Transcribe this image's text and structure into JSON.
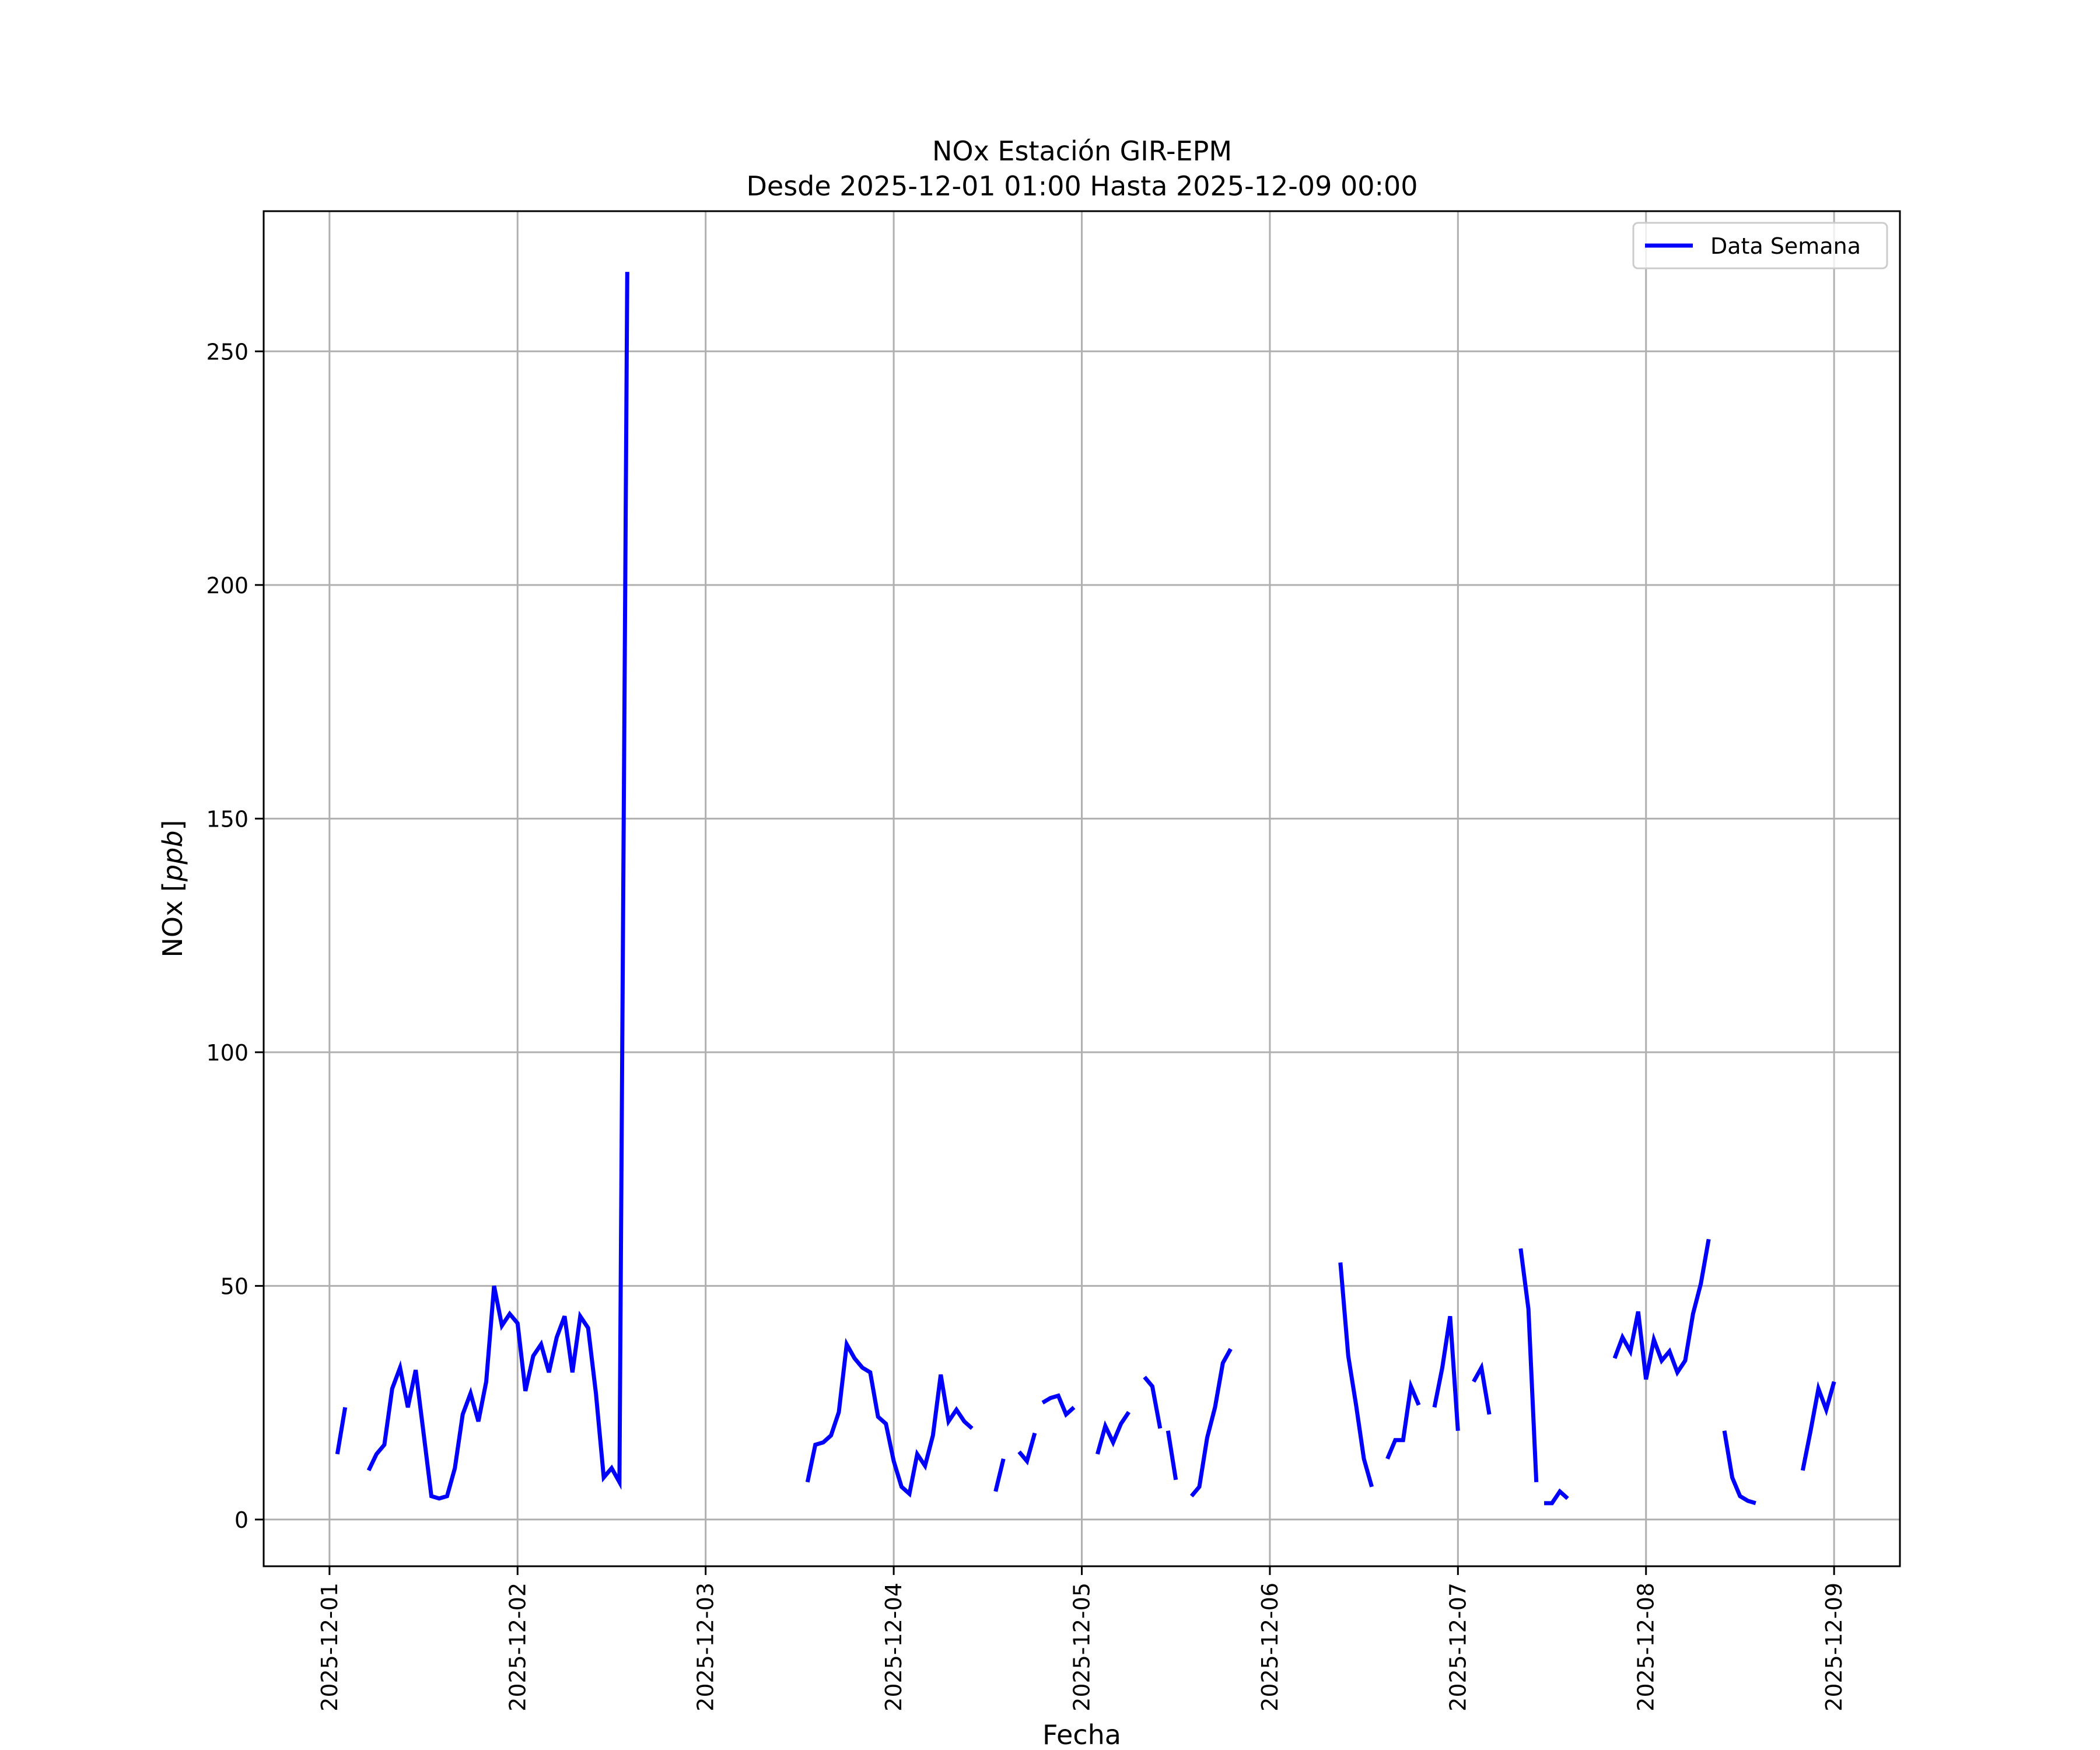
{
  "chart_data": {
    "type": "line",
    "title": "NOx Estación GIR-EPM",
    "subtitle": "Desde 2025-12-01 01:00 Hasta 2025-12-09 00:00",
    "xlabel": "Fecha",
    "ylabel": "NOx [ppb]",
    "ylim": [
      -10,
      280
    ],
    "xlim": [
      "2025-11-30T15:36",
      "2025-12-09T08:24"
    ],
    "yticks": [
      0,
      50,
      100,
      150,
      200,
      250
    ],
    "xticks": [
      "2025-12-01",
      "2025-12-02",
      "2025-12-03",
      "2025-12-04",
      "2025-12-05",
      "2025-12-06",
      "2025-12-07",
      "2025-12-08",
      "2025-12-09"
    ],
    "grid": true,
    "legend_position": "top-right",
    "colors": {
      "series": "#0000ff",
      "grid": "#b0b0b0",
      "axes": "#000000"
    },
    "series": [
      {
        "name": "Data Semana",
        "segments": [
          [
            [
              "2025-12-01T01:00",
              14
            ],
            [
              "2025-12-01T02:00",
              24
            ]
          ],
          [
            [
              "2025-12-01T05:00",
              10.5
            ],
            [
              "2025-12-01T06:00",
              14
            ],
            [
              "2025-12-01T07:00",
              16
            ],
            [
              "2025-12-01T08:00",
              28
            ],
            [
              "2025-12-01T09:00",
              32.5
            ],
            [
              "2025-12-01T10:00",
              24
            ],
            [
              "2025-12-01T11:00",
              32
            ],
            [
              "2025-12-01T12:00",
              18.5
            ],
            [
              "2025-12-01T13:00",
              5
            ],
            [
              "2025-12-01T14:00",
              4.5
            ],
            [
              "2025-12-01T15:00",
              5
            ],
            [
              "2025-12-01T16:00",
              11
            ],
            [
              "2025-12-01T17:00",
              22.5
            ],
            [
              "2025-12-01T18:00",
              27
            ],
            [
              "2025-12-01T19:00",
              21
            ],
            [
              "2025-12-01T20:00",
              29.5
            ],
            [
              "2025-12-01T21:00",
              50
            ],
            [
              "2025-12-01T22:00",
              41.5
            ],
            [
              "2025-12-01T23:00",
              44
            ],
            [
              "2025-12-02T00:00",
              42
            ],
            [
              "2025-12-02T01:00",
              27.5
            ],
            [
              "2025-12-02T02:00",
              35
            ],
            [
              "2025-12-02T03:00",
              37.5
            ],
            [
              "2025-12-02T04:00",
              31.5
            ],
            [
              "2025-12-02T05:00",
              39
            ],
            [
              "2025-12-02T06:00",
              43.5
            ],
            [
              "2025-12-02T07:00",
              31.5
            ],
            [
              "2025-12-02T08:00",
              43.5
            ],
            [
              "2025-12-02T09:00",
              41
            ],
            [
              "2025-12-02T10:00",
              27
            ],
            [
              "2025-12-02T11:00",
              9
            ],
            [
              "2025-12-02T12:00",
              11
            ],
            [
              "2025-12-02T13:00",
              8
            ],
            [
              "2025-12-02T14:00",
              267
            ]
          ],
          [
            [
              "2025-12-03T13:00",
              8
            ],
            [
              "2025-12-03T14:00",
              16
            ],
            [
              "2025-12-03T15:00",
              16.5
            ],
            [
              "2025-12-03T16:00",
              18
            ],
            [
              "2025-12-03T17:00",
              23
            ],
            [
              "2025-12-03T18:00",
              37.5
            ],
            [
              "2025-12-03T19:00",
              34.5
            ],
            [
              "2025-12-03T20:00",
              32.5
            ],
            [
              "2025-12-03T21:00",
              31.5
            ],
            [
              "2025-12-03T22:00",
              22
            ],
            [
              "2025-12-03T23:00",
              20.5
            ],
            [
              "2025-12-04T00:00",
              12.5
            ],
            [
              "2025-12-04T01:00",
              7
            ],
            [
              "2025-12-04T02:00",
              5.5
            ],
            [
              "2025-12-04T03:00",
              14
            ],
            [
              "2025-12-04T04:00",
              11.5
            ],
            [
              "2025-12-04T05:00",
              18
            ],
            [
              "2025-12-04T06:00",
              31
            ],
            [
              "2025-12-04T07:00",
              21
            ],
            [
              "2025-12-04T08:00",
              23.5
            ],
            [
              "2025-12-04T09:00",
              21
            ],
            [
              "2025-12-04T10:00",
              19.5
            ]
          ],
          [
            [
              "2025-12-04T13:00",
              6
            ],
            [
              "2025-12-04T14:00",
              13
            ]
          ],
          [
            [
              "2025-12-04T16:00",
              14.5
            ],
            [
              "2025-12-04T17:00",
              12.5
            ],
            [
              "2025-12-04T18:00",
              18.5
            ]
          ],
          [
            [
              "2025-12-04T19:00",
              25
            ],
            [
              "2025-12-04T20:00",
              26
            ],
            [
              "2025-12-04T21:00",
              26.5
            ],
            [
              "2025-12-04T22:00",
              22.5
            ],
            [
              "2025-12-04T23:00",
              24
            ]
          ],
          [
            [
              "2025-12-05T02:00",
              14
            ],
            [
              "2025-12-05T03:00",
              20
            ],
            [
              "2025-12-05T04:00",
              16.5
            ],
            [
              "2025-12-05T05:00",
              20.5
            ],
            [
              "2025-12-05T06:00",
              23
            ]
          ],
          [
            [
              "2025-12-05T08:00",
              30.5
            ],
            [
              "2025-12-05T09:00",
              28.5
            ],
            [
              "2025-12-05T10:00",
              19.5
            ]
          ],
          [
            [
              "2025-12-05T11:00",
              19
            ],
            [
              "2025-12-05T12:00",
              8.5
            ]
          ],
          [
            [
              "2025-12-05T14:00",
              5
            ],
            [
              "2025-12-05T15:00",
              7
            ],
            [
              "2025-12-05T16:00",
              17.5
            ],
            [
              "2025-12-05T17:00",
              24
            ],
            [
              "2025-12-05T18:00",
              33.5
            ],
            [
              "2025-12-05T19:00",
              36.5
            ]
          ],
          [
            [
              "2025-12-06T09:00",
              55
            ],
            [
              "2025-12-06T10:00",
              35
            ],
            [
              "2025-12-06T11:00",
              24.5
            ],
            [
              "2025-12-06T12:00",
              13
            ],
            [
              "2025-12-06T13:00",
              7
            ]
          ],
          [
            [
              "2025-12-06T15:00",
              13
            ],
            [
              "2025-12-06T16:00",
              17
            ],
            [
              "2025-12-06T17:00",
              17
            ],
            [
              "2025-12-06T18:00",
              28.5
            ],
            [
              "2025-12-06T19:00",
              24.5
            ]
          ],
          [
            [
              "2025-12-06T21:00",
              24
            ],
            [
              "2025-12-06T22:00",
              32.5
            ],
            [
              "2025-12-06T23:00",
              43.5
            ],
            [
              "2025-12-07T00:00",
              19
            ]
          ],
          [
            [
              "2025-12-07T02:00",
              29.5
            ],
            [
              "2025-12-07T03:00",
              32.5
            ],
            [
              "2025-12-07T04:00",
              22.5
            ]
          ],
          [
            [
              "2025-12-07T08:00",
              58
            ],
            [
              "2025-12-07T09:00",
              45
            ],
            [
              "2025-12-07T10:00",
              8
            ]
          ],
          [
            [
              "2025-12-07T11:00",
              3.5
            ],
            [
              "2025-12-07T12:00",
              3.5
            ],
            [
              "2025-12-07T13:00",
              6
            ],
            [
              "2025-12-07T14:00",
              4.5
            ]
          ],
          [
            [
              "2025-12-07T20:00",
              34.5
            ],
            [
              "2025-12-07T21:00",
              39
            ],
            [
              "2025-12-07T22:00",
              36
            ],
            [
              "2025-12-07T23:00",
              44.5
            ],
            [
              "2025-12-08T00:00",
              30
            ],
            [
              "2025-12-08T01:00",
              38.5
            ],
            [
              "2025-12-08T02:00",
              34
            ],
            [
              "2025-12-08T03:00",
              36
            ],
            [
              "2025-12-08T04:00",
              31.5
            ],
            [
              "2025-12-08T05:00",
              34
            ],
            [
              "2025-12-08T06:00",
              44
            ],
            [
              "2025-12-08T07:00",
              50.5
            ],
            [
              "2025-12-08T08:00",
              60
            ]
          ],
          [
            [
              "2025-12-08T10:00",
              19
            ],
            [
              "2025-12-08T11:00",
              9
            ],
            [
              "2025-12-08T12:00",
              5
            ],
            [
              "2025-12-08T13:00",
              4
            ],
            [
              "2025-12-08T14:00",
              3.5
            ]
          ],
          [
            [
              "2025-12-08T20:00",
              10.5
            ],
            [
              "2025-12-08T21:00",
              19
            ],
            [
              "2025-12-08T22:00",
              28
            ],
            [
              "2025-12-08T23:00",
              23.5
            ],
            [
              "2025-12-09T00:00",
              29.5
            ]
          ]
        ]
      }
    ]
  }
}
